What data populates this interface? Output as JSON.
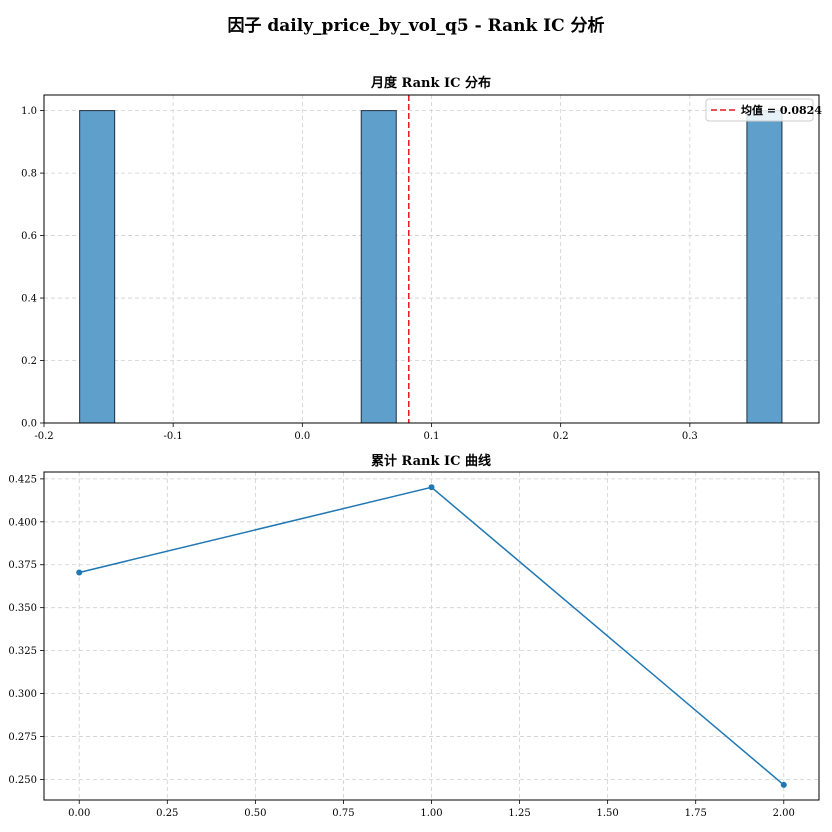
{
  "suptitle": "因子 daily_price_by_vol_q5 - Rank IC 分析",
  "colors": {
    "bar_fill": "#5f9fcc",
    "bar_edge": "#1f2f3f",
    "line": "#1f77b4",
    "mean_line": "#e41a1c",
    "grid": "#cfcfcf"
  },
  "chart_data": [
    {
      "type": "bar",
      "title": "月度 Rank IC 分布",
      "xlabel": "",
      "ylabel": "",
      "xlim": [
        -0.2,
        0.4
      ],
      "ylim": [
        0,
        1.05
      ],
      "xticks": [
        -0.2,
        -0.1,
        0.0,
        0.1,
        0.2,
        0.3
      ],
      "xtick_labels": [
        "-0.2",
        "-0.1",
        "0.0",
        "0.1",
        "0.2",
        "0.3"
      ],
      "yticks": [
        0.0,
        0.2,
        0.4,
        0.6,
        0.8,
        1.0
      ],
      "ytick_labels": [
        "0.0",
        "0.2",
        "0.4",
        "0.6",
        "0.8",
        "1.0"
      ],
      "bins": [
        {
          "x0": -0.1724,
          "x1": -0.1453,
          "count": 1
        },
        {
          "x0": 0.0456,
          "x1": 0.0727,
          "count": 1
        },
        {
          "x0": 0.3442,
          "x1": 0.3713,
          "count": 1
        }
      ],
      "mean_value": 0.0824,
      "legend_label": "均值 = 0.0824",
      "legend_position": "upper-right",
      "grid": true
    },
    {
      "type": "line",
      "title": "累计 Rank IC 曲线",
      "xlabel": "",
      "ylabel": "",
      "x": [
        0,
        1,
        2
      ],
      "y": [
        0.3705,
        0.4201,
        0.2468
      ],
      "xlim": [
        -0.1,
        2.1
      ],
      "ylim": [
        0.238,
        0.429
      ],
      "xticks": [
        0.0,
        0.25,
        0.5,
        0.75,
        1.0,
        1.25,
        1.5,
        1.75,
        2.0
      ],
      "xtick_labels": [
        "0.00",
        "0.25",
        "0.50",
        "0.75",
        "1.00",
        "1.25",
        "1.50",
        "1.75",
        "2.00"
      ],
      "yticks": [
        0.25,
        0.275,
        0.3,
        0.325,
        0.35,
        0.375,
        0.4,
        0.425
      ],
      "ytick_labels": [
        "0.250",
        "0.275",
        "0.300",
        "0.325",
        "0.350",
        "0.375",
        "0.400",
        "0.425"
      ],
      "marker": "circle",
      "grid": true
    }
  ]
}
